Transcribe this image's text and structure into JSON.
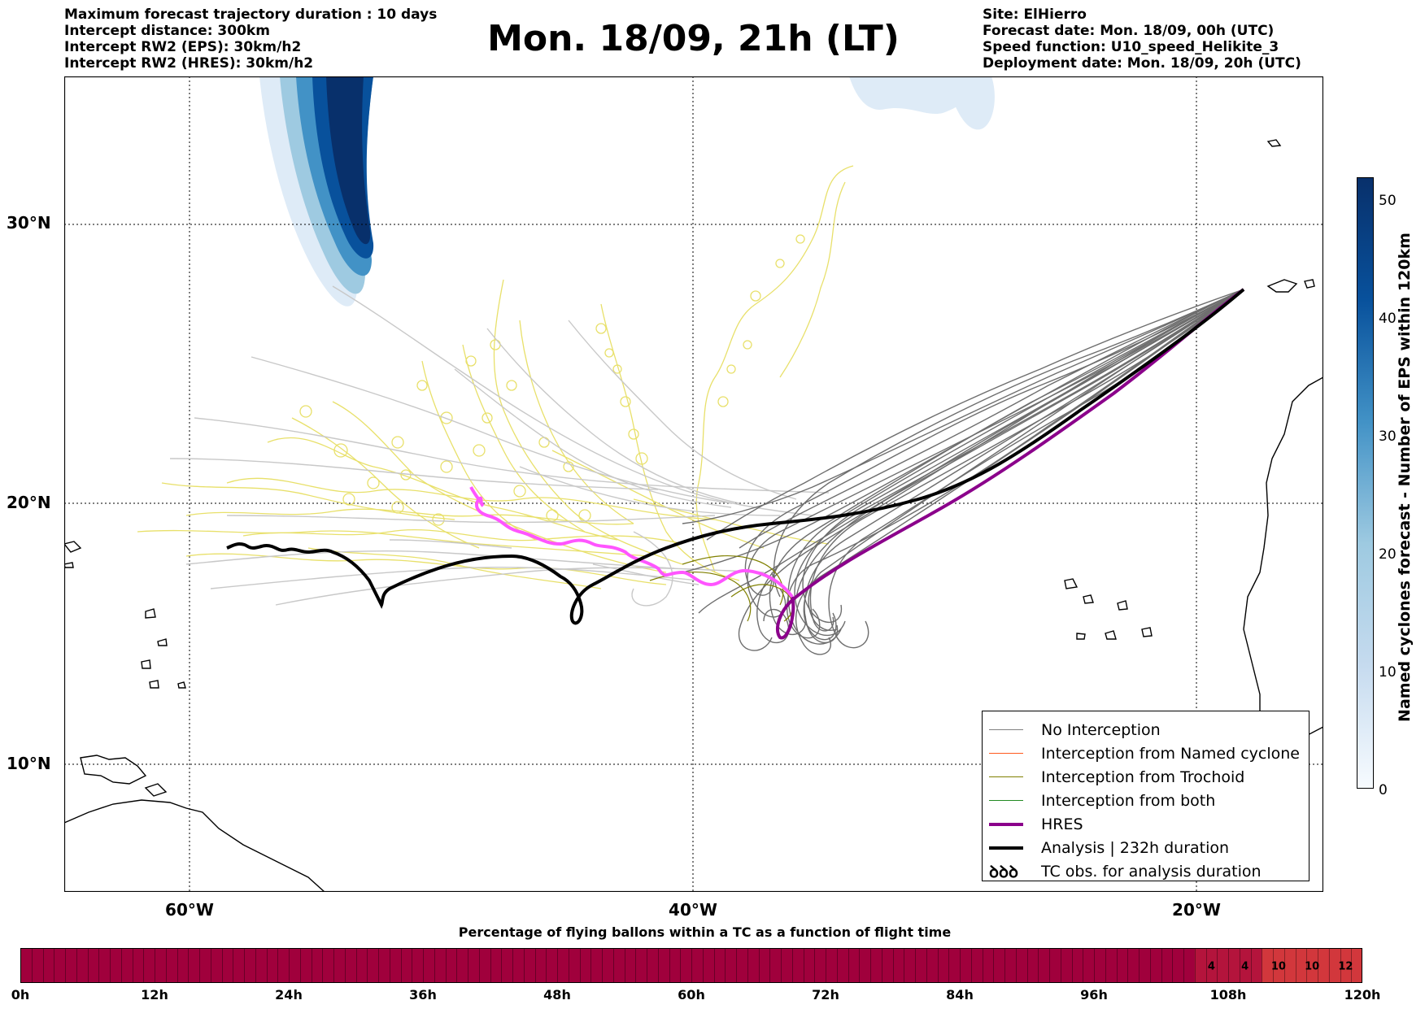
{
  "header": {
    "left_lines": [
      "Maximum forecast trajectory duration : 10 days",
      "Intercept distance: 300km",
      "Intercept RW2 (EPS):  30km/h2",
      "Intercept RW2 (HRES): 30km/h2"
    ],
    "title": "Mon. 18/09, 21h (LT)",
    "right_lines": [
      "Site: ElHierro",
      "Forecast date: Mon. 18/09, 00h (UTC)",
      "Speed function: U10_speed_Helikite_3",
      "Deployment date: Mon. 18/09, 20h (UTC)"
    ]
  },
  "map": {
    "lat_labels": [
      "30°N",
      "20°N",
      "10°N"
    ],
    "lon_labels": [
      "60°W",
      "40°W",
      "20°W"
    ]
  },
  "legend": {
    "items": [
      {
        "label": "No Interception",
        "color": "#808080"
      },
      {
        "label": "Interception from Named cyclone",
        "color": "#ff5a1e"
      },
      {
        "label": "Interception from Trochoid",
        "color": "#808000"
      },
      {
        "label": "Interception from both",
        "color": "#228b22"
      },
      {
        "label": "HRES",
        "color": "#8b008b"
      },
      {
        "label": "Analysis | 232h duration",
        "color": "#000000"
      },
      {
        "label": "TC obs. for analysis duration",
        "icon": "loop-glyph-icon"
      }
    ],
    "loop_glyph": "ꝺꝺꝺ"
  },
  "colorbar": {
    "label": "Named cyclones forecast - Number of EPS within 120km",
    "ticks": [
      "50",
      "40",
      "30",
      "20",
      "10",
      "0"
    ],
    "range": [
      0,
      52
    ],
    "color_low": "#f7fbff",
    "color_high": "#08306b"
  },
  "time_bar": {
    "title": "Percentage of flying ballons within a TC as a function of flight time",
    "ticks": [
      "0h",
      "12h",
      "24h",
      "36h",
      "48h",
      "60h",
      "72h",
      "84h",
      "96h",
      "108h",
      "120h"
    ],
    "base_color": "#a0003c",
    "cells": [
      {
        "value": "4",
        "color": "#b4143c"
      },
      {
        "value": "4",
        "color": "#b4143c"
      },
      {
        "value": "10",
        "color": "#d2373c"
      },
      {
        "value": "10",
        "color": "#d2373c"
      },
      {
        "value": "12",
        "color": "#d2373c"
      }
    ]
  }
}
